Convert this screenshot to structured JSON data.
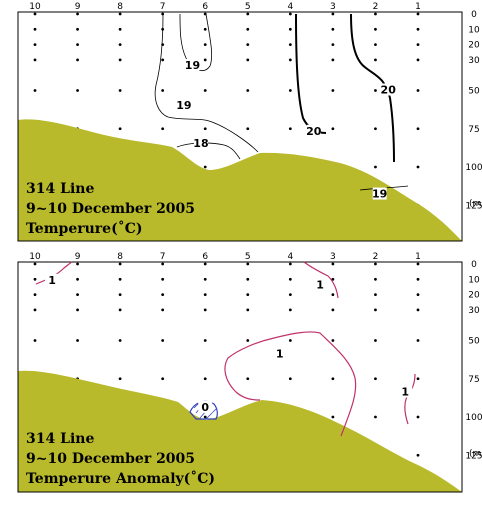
{
  "chart_data": [
    {
      "type": "contour-section",
      "title_lines": [
        "314 Line",
        "9~10 December 2005",
        "Temperure(˚C)"
      ],
      "station_labels": [
        "10",
        "9",
        "8",
        "7",
        "6",
        "5",
        "4",
        "3",
        "2",
        "1"
      ],
      "depth_ticks": [
        0,
        10,
        20,
        30,
        50,
        75,
        100,
        125
      ],
      "depth_unit": "(m)",
      "ylim": [
        0,
        140
      ],
      "sample_depths": [
        0,
        10,
        20,
        30,
        50,
        75,
        100,
        125
      ],
      "contour_labels": [
        {
          "value": "19",
          "station": 6.3,
          "depth": 34
        },
        {
          "value": "19",
          "station": 6.5,
          "depth": 60
        },
        {
          "value": "18",
          "station": 6.1,
          "depth": 85
        },
        {
          "value": "20",
          "station": 3.45,
          "depth": 77
        },
        {
          "value": "20",
          "station": 1.7,
          "depth": 50
        },
        {
          "value": "19",
          "station": 1.9,
          "depth": 118
        }
      ]
    },
    {
      "type": "contour-section",
      "title_lines": [
        "314 Line",
        "9~10 December 2005",
        "Temperure Anomaly(˚C)"
      ],
      "station_labels": [
        "10",
        "9",
        "8",
        "7",
        "6",
        "5",
        "4",
        "3",
        "2",
        "1"
      ],
      "depth_ticks": [
        0,
        10,
        20,
        30,
        50,
        75,
        100,
        125
      ],
      "depth_unit": "(m)",
      "ylim": [
        0,
        140
      ],
      "sample_depths": [
        0,
        10,
        20,
        30,
        50,
        75,
        100,
        125
      ],
      "contour_labels": [
        {
          "value": "1",
          "station": 9.6,
          "depth": 11
        },
        {
          "value": "1",
          "station": 3.3,
          "depth": 14
        },
        {
          "value": "1",
          "station": 4.25,
          "depth": 59
        },
        {
          "value": "1",
          "station": 1.3,
          "depth": 84
        },
        {
          "value": "0",
          "station": 6.0,
          "depth": 94
        }
      ]
    }
  ]
}
